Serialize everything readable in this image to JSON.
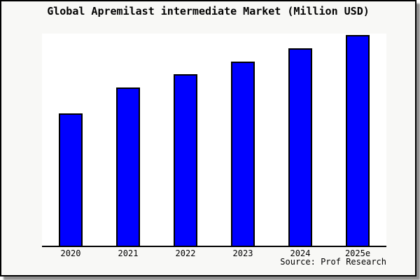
{
  "window": {
    "background": "#f8f8f6",
    "frame_border_color": "#000000",
    "shadow_color": "#8f8f8f",
    "plot_background": "#ffffff"
  },
  "chart_data": {
    "type": "bar",
    "title": "Global Apremilast intermediate Market (Million USD)",
    "categories": [
      "2020",
      "2021",
      "2022",
      "2023",
      "2024",
      "2025e"
    ],
    "values": [
      62.7,
      75.1,
      81.5,
      87.5,
      93.6,
      100
    ],
    "ylim": [
      0,
      100
    ],
    "xlabel": "",
    "ylabel": "",
    "grid": false,
    "legend": false,
    "y_axis_shown": false,
    "bar_color": "#0000ff",
    "bar_border_color": "#000000",
    "axis_color": "#000000",
    "source": "Source: Prof Research"
  }
}
